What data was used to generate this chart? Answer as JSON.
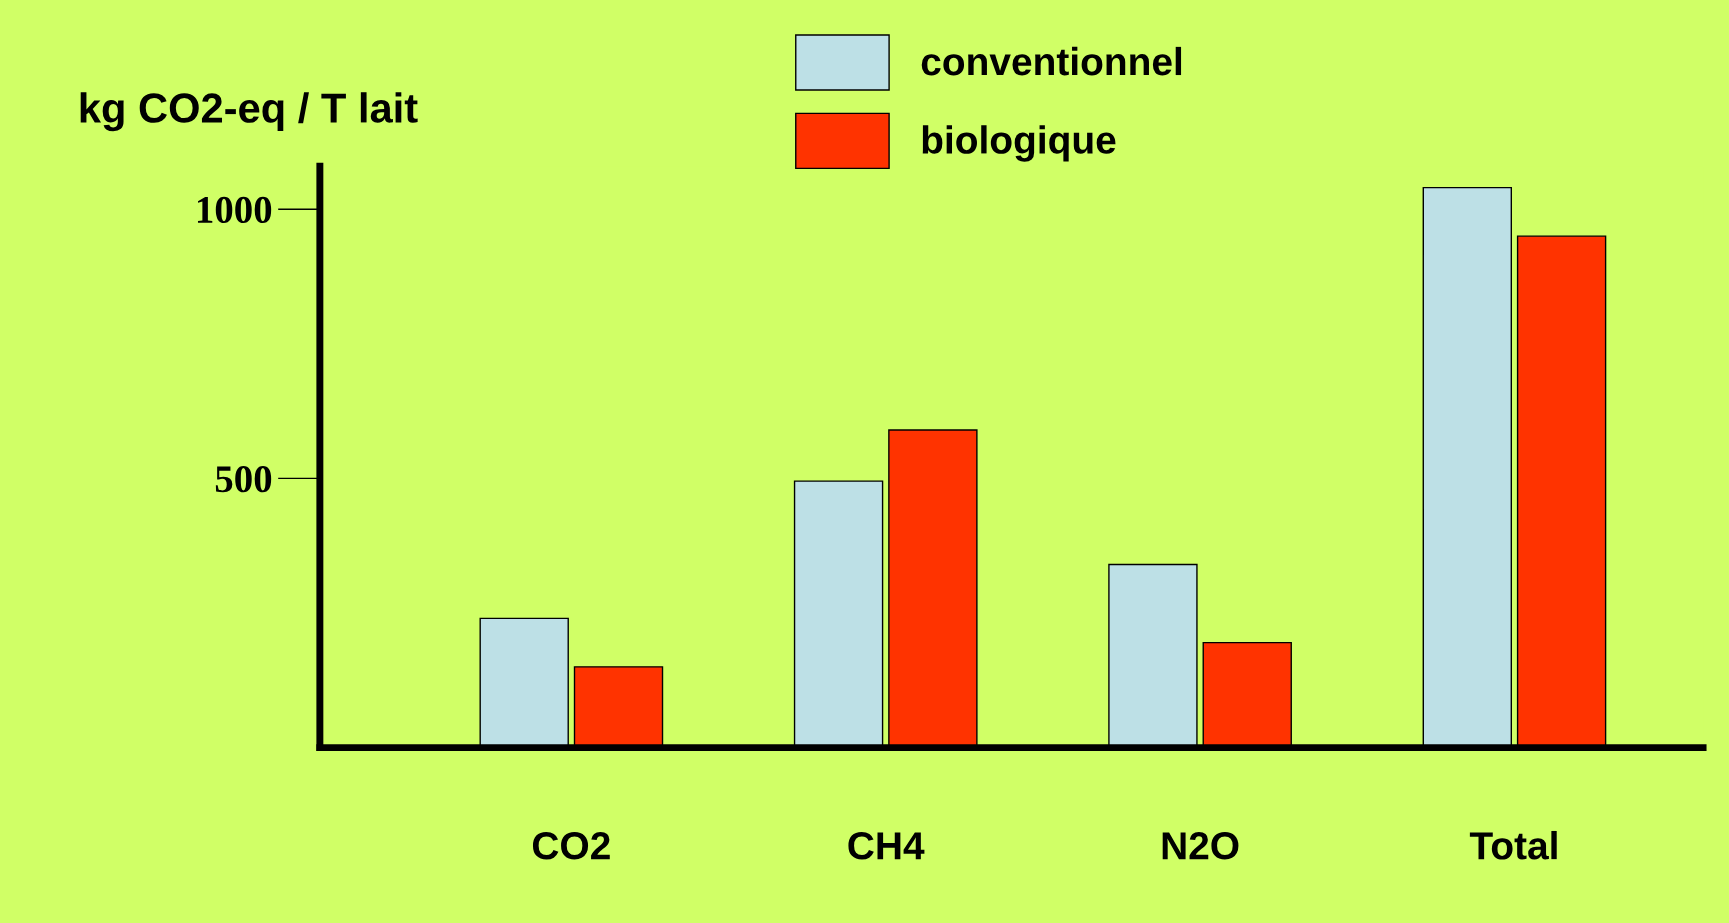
{
  "chart_data": {
    "type": "bar",
    "ylabel": "kg CO2-eq / T lait",
    "categories": [
      "CO2",
      "CH4",
      "N2O",
      "Total"
    ],
    "series": [
      {
        "name": "conventionnel",
        "color": "#bde0e6",
        "values": [
          240,
          495,
          340,
          1040
        ]
      },
      {
        "name": "biologique",
        "color": "#ff3300",
        "values": [
          150,
          590,
          195,
          950
        ]
      }
    ],
    "ylim": [
      0,
      1080
    ],
    "yticks": [
      500,
      1000
    ],
    "grid": false,
    "legend": "top right"
  }
}
